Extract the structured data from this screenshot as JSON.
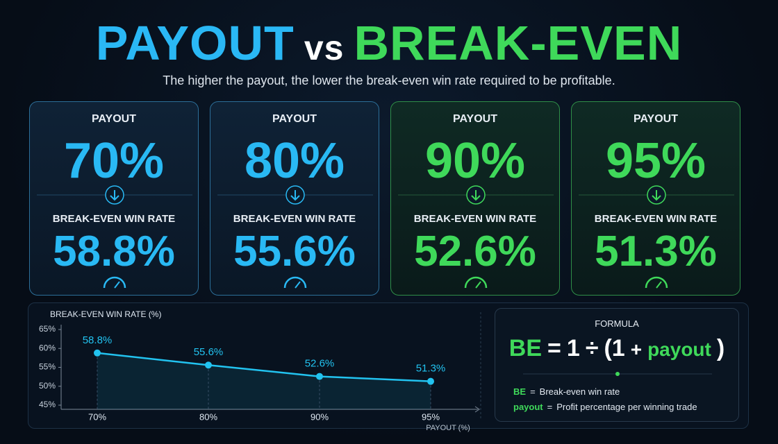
{
  "header": {
    "title_left": "PAYOUT",
    "title_mid": "vs",
    "title_right": "BREAK-EVEN",
    "subtitle": "The higher the payout, the lower the break-even win rate required to be profitable."
  },
  "cards": [
    {
      "payout_label": "PAYOUT",
      "payout": "70%",
      "be_label": "BREAK-EVEN WIN RATE",
      "be": "58.8%"
    },
    {
      "payout_label": "PAYOUT",
      "payout": "80%",
      "be_label": "BREAK-EVEN WIN RATE",
      "be": "55.6%"
    },
    {
      "payout_label": "PAYOUT",
      "payout": "90%",
      "be_label": "BREAK-EVEN WIN RATE",
      "be": "52.6%"
    },
    {
      "payout_label": "PAYOUT",
      "payout": "95%",
      "be_label": "BREAK-EVEN WIN RATE",
      "be": "51.3%"
    }
  ],
  "chart_data": {
    "type": "line",
    "y_label": "BREAK-EVEN WIN RATE (%)",
    "x_label": "PAYOUT (%)",
    "categories": [
      "70%",
      "80%",
      "90%",
      "95%"
    ],
    "values": [
      58.8,
      55.6,
      52.6,
      51.3
    ],
    "value_labels": [
      "58.8%",
      "55.6%",
      "52.6%",
      "51.3%"
    ],
    "color": "#22c3f0",
    "ylim": [
      45,
      65
    ],
    "yticks": [
      {
        "value": 45,
        "label": "45%"
      },
      {
        "value": 50,
        "label": "50%"
      },
      {
        "value": 55,
        "label": "55%"
      },
      {
        "value": 60,
        "label": "60%"
      },
      {
        "value": 65,
        "label": "65%"
      }
    ]
  },
  "formula": {
    "title": "FORMULA",
    "equation": [
      "BE",
      "=",
      "1",
      "÷",
      "(1",
      "+",
      "payout",
      ")"
    ],
    "legend": [
      {
        "term": "BE",
        "eq": "=",
        "meaning": "Break-even win rate"
      },
      {
        "term": "payout",
        "eq": "=",
        "meaning": "Profit percentage per winning trade"
      }
    ]
  }
}
